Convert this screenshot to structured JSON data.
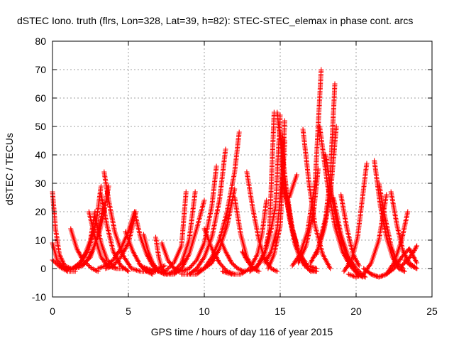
{
  "chart_data": {
    "type": "scatter",
    "title": "dSTEC Iono. truth (flrs, Lon=328, Lat=39, h=82): STEC-STEC_elemax in phase cont. arcs",
    "xlabel": "GPS time / hours of day 116 of year 2015",
    "ylabel": "dSTEC  / TECUs",
    "xlim": [
      0,
      25
    ],
    "ylim": [
      -10,
      80
    ],
    "xticks": [
      0,
      5,
      10,
      15,
      20,
      25
    ],
    "yticks": [
      -10,
      0,
      10,
      20,
      30,
      40,
      50,
      60,
      70,
      80
    ],
    "grid": true,
    "marker": "+",
    "color": "#ff0000",
    "series": [
      {
        "x": [
          0.0,
          0.2,
          0.45,
          0.8,
          1.2
        ],
        "y": [
          27,
          14,
          5,
          1,
          0
        ]
      },
      {
        "x": [
          0.0,
          0.3,
          0.8,
          1.4
        ],
        "y": [
          9,
          3,
          0,
          0
        ]
      },
      {
        "x": [
          0.0,
          0.5,
          1.0,
          1.5
        ],
        "y": [
          3,
          0.5,
          -1,
          -1
        ]
      },
      {
        "x": [
          0.5,
          1.0,
          1.5,
          2.0,
          2.5,
          2.8
        ],
        "y": [
          1,
          -0.5,
          0,
          3,
          10,
          20
        ]
      },
      {
        "x": [
          0.8,
          1.3,
          1.8,
          2.4,
          2.9,
          3.2
        ],
        "y": [
          0,
          0,
          2,
          7,
          17,
          29
        ]
      },
      {
        "x": [
          1.3,
          1.8,
          2.5,
          3.0,
          3.3
        ],
        "y": [
          0,
          0.5,
          4,
          12,
          21
        ]
      },
      {
        "x": [
          1.2,
          1.6,
          2.0,
          2.6,
          3.0
        ],
        "y": [
          14,
          7,
          3,
          0,
          -1
        ]
      },
      {
        "x": [
          2.0,
          2.3,
          2.7,
          3.1,
          3.4,
          3.7
        ],
        "y": [
          1,
          3,
          7,
          13,
          20,
          29
        ]
      },
      {
        "x": [
          2.4,
          2.8,
          3.2,
          3.6,
          4.2
        ],
        "y": [
          20,
          11,
          4,
          1,
          0
        ]
      },
      {
        "x": [
          3.4,
          3.7,
          4.1,
          4.6,
          5.2,
          5.8,
          6.3
        ],
        "y": [
          34,
          24,
          13,
          5,
          0,
          -1,
          -1
        ]
      },
      {
        "x": [
          3.2,
          3.6,
          4.0,
          4.5,
          5.0
        ],
        "y": [
          26,
          15,
          6,
          1,
          -1
        ]
      },
      {
        "x": [
          2.8,
          3.2,
          3.6,
          4.2,
          4.8
        ],
        "y": [
          18,
          9,
          3,
          0,
          0
        ]
      },
      {
        "x": [
          3.0,
          3.5,
          4.0,
          4.5,
          5.0,
          5.4
        ],
        "y": [
          0,
          1,
          3,
          7,
          13,
          20
        ]
      },
      {
        "x": [
          3.5,
          4.0,
          4.5,
          5.0,
          5.5
        ],
        "y": [
          0,
          1,
          4,
          9,
          20
        ]
      },
      {
        "x": [
          4.8,
          5.3,
          5.8,
          6.2,
          6.6
        ],
        "y": [
          13,
          6,
          1,
          -1,
          -2
        ]
      },
      {
        "x": [
          5.4,
          5.8,
          6.2,
          6.6,
          7.0,
          7.4
        ],
        "y": [
          20,
          11,
          5,
          1,
          -1,
          -2
        ]
      },
      {
        "x": [
          6.0,
          6.3,
          6.6,
          7.0
        ],
        "y": [
          12,
          6,
          2,
          -1
        ]
      },
      {
        "x": [
          6.8,
          7.0,
          7.2,
          7.5
        ],
        "y": [
          11,
          4,
          0,
          -2
        ]
      },
      {
        "x": [
          5.8,
          6.2,
          6.6,
          7.0,
          7.4
        ],
        "y": [
          1,
          0,
          -1,
          0,
          1
        ]
      },
      {
        "x": [
          6.2,
          6.8,
          7.4,
          8.0,
          8.5,
          8.8
        ],
        "y": [
          0,
          -1,
          -1,
          2,
          8,
          27
        ]
      },
      {
        "x": [
          7.0,
          7.5,
          8.0,
          8.5,
          9.0,
          9.4
        ],
        "y": [
          -1,
          -2,
          -1,
          2,
          10,
          27
        ]
      },
      {
        "x": [
          7.5,
          8.0,
          8.5,
          9.0,
          9.5,
          10.0
        ],
        "y": [
          -2,
          -2,
          0,
          5,
          14,
          24
        ]
      },
      {
        "x": [
          7.2,
          7.6,
          8.0,
          8.5
        ],
        "y": [
          9,
          3,
          0,
          -1
        ]
      },
      {
        "x": [
          8.0,
          8.5,
          9.0,
          9.5,
          10.0,
          10.5,
          10.8
        ],
        "y": [
          -1,
          -1,
          0,
          3,
          9,
          22,
          36
        ]
      },
      {
        "x": [
          8.5,
          9.0,
          9.5,
          10.0,
          10.5,
          11.0,
          11.4
        ],
        "y": [
          -2,
          -2,
          0,
          4,
          11,
          24,
          42
        ]
      },
      {
        "x": [
          9.0,
          9.5,
          10.0,
          10.5,
          11.0,
          11.5,
          12.0,
          12.3
        ],
        "y": [
          -2,
          -2,
          0,
          4,
          10,
          20,
          34,
          48
        ]
      },
      {
        "x": [
          9.5,
          10.0,
          10.5,
          11.0,
          11.5,
          12.0
        ],
        "y": [
          -1,
          0,
          2,
          7,
          15,
          28
        ]
      },
      {
        "x": [
          10.0,
          10.5,
          11.0,
          11.5,
          12.0
        ],
        "y": [
          14,
          7,
          2,
          -1,
          -2
        ]
      },
      {
        "x": [
          11.0,
          11.4,
          11.8,
          12.2,
          12.6
        ],
        "y": [
          11,
          6,
          2,
          0,
          -1
        ]
      },
      {
        "x": [
          11.2,
          11.8,
          12.4,
          13.0,
          13.5,
          13.8,
          14.1
        ],
        "y": [
          -1,
          -2,
          -2,
          0,
          5,
          12,
          24
        ]
      },
      {
        "x": [
          12.0,
          12.4,
          12.8,
          13.2
        ],
        "y": [
          25,
          12,
          4,
          0
        ]
      },
      {
        "x": [
          12.8,
          13.2,
          13.6,
          14.0,
          14.4,
          14.8
        ],
        "y": [
          34,
          21,
          10,
          3,
          0,
          -1
        ]
      },
      {
        "x": [
          12.5,
          12.8,
          13.2,
          13.6
        ],
        "y": [
          6,
          3,
          0,
          -1
        ]
      },
      {
        "x": [
          13.0,
          13.5,
          14.0,
          14.3,
          14.6
        ],
        "y": [
          -1,
          1,
          6,
          14,
          55
        ]
      },
      {
        "x": [
          13.4,
          13.9,
          14.3,
          14.7,
          15.0
        ],
        "y": [
          0,
          4,
          11,
          22,
          54
        ]
      },
      {
        "x": [
          14.0,
          14.4,
          14.8,
          15.1,
          15.3
        ],
        "y": [
          2,
          6,
          14,
          30,
          52
        ]
      },
      {
        "x": [
          14.2,
          14.6,
          15.0,
          15.3
        ],
        "y": [
          0,
          5,
          15,
          45
        ]
      },
      {
        "x": [
          14.8,
          15.2,
          15.6,
          16.0,
          16.5,
          17.0,
          17.4
        ],
        "y": [
          55,
          35,
          18,
          8,
          2,
          -1,
          -1
        ]
      },
      {
        "x": [
          15.0,
          15.4,
          15.8,
          16.2,
          16.8,
          17.4
        ],
        "y": [
          48,
          28,
          14,
          5,
          0,
          -1
        ]
      },
      {
        "x": [
          15.2,
          15.7,
          16.2,
          16.8,
          17.4
        ],
        "y": [
          30,
          16,
          6,
          1,
          0
        ]
      },
      {
        "x": [
          15.4,
          15.8,
          16.2,
          16.6
        ],
        "y": [
          26,
          14,
          6,
          1
        ]
      },
      {
        "x": [
          15.6,
          15.9,
          16.1
        ],
        "y": [
          25,
          30,
          33
        ]
      },
      {
        "x": [
          15.8,
          16.3,
          16.8,
          17.3,
          17.7
        ],
        "y": [
          1,
          5,
          13,
          30,
          70
        ]
      },
      {
        "x": [
          16.2,
          16.7,
          17.2,
          17.5
        ],
        "y": [
          2,
          8,
          20,
          35
        ]
      },
      {
        "x": [
          16.5,
          16.9,
          17.3,
          17.8,
          18.3
        ],
        "y": [
          49,
          30,
          15,
          5,
          0
        ]
      },
      {
        "x": [
          17.0,
          17.5,
          18.0,
          18.3,
          18.6
        ],
        "y": [
          2,
          7,
          18,
          32,
          65
        ]
      },
      {
        "x": [
          17.4,
          17.9,
          18.3,
          18.7
        ],
        "y": [
          5,
          14,
          26,
          50
        ]
      },
      {
        "x": [
          17.6,
          18.1,
          18.6,
          19.1,
          19.6,
          20.1,
          20.6
        ],
        "y": [
          50,
          30,
          15,
          6,
          1,
          -2,
          -3
        ]
      },
      {
        "x": [
          18.0,
          18.5,
          19.0,
          19.5,
          20.0,
          20.4
        ],
        "y": [
          40,
          22,
          10,
          3,
          -1,
          -3
        ]
      },
      {
        "x": [
          18.5,
          19.0,
          19.5,
          20.0,
          20.6
        ],
        "y": [
          25,
          12,
          4,
          0,
          -3
        ]
      },
      {
        "x": [
          19.0,
          19.4,
          19.8,
          20.2
        ],
        "y": [
          26,
          14,
          5,
          1
        ]
      },
      {
        "x": [
          19.2,
          19.7,
          20.1,
          20.4,
          20.7
        ],
        "y": [
          -1,
          3,
          11,
          24,
          37
        ]
      },
      {
        "x": [
          19.5,
          20.0,
          20.5,
          21.0,
          21.5,
          22.0
        ],
        "y": [
          -2,
          -3,
          -2,
          2,
          10,
          26
        ]
      },
      {
        "x": [
          20.5,
          21.0,
          21.5,
          22.0,
          22.5,
          23.0,
          23.4
        ],
        "y": [
          0,
          -2,
          -3,
          -2,
          2,
          10,
          20
        ]
      },
      {
        "x": [
          21.0,
          21.5,
          22.0,
          22.5,
          23.0,
          23.5,
          24.0
        ],
        "y": [
          -2,
          -3,
          -2,
          0,
          4,
          7,
          2
        ]
      },
      {
        "x": [
          21.2,
          21.6,
          22.0,
          22.4,
          22.8,
          23.2
        ],
        "y": [
          38,
          22,
          11,
          4,
          0,
          -1
        ]
      },
      {
        "x": [
          21.5,
          21.9,
          22.3,
          22.7,
          23.1
        ],
        "y": [
          30,
          18,
          8,
          2,
          0
        ]
      },
      {
        "x": [
          22.3,
          22.7,
          23.1,
          23.5,
          24.0
        ],
        "y": [
          27,
          15,
          6,
          2,
          0
        ]
      },
      {
        "x": [
          23.0,
          23.4,
          23.8,
          24.0
        ],
        "y": [
          1,
          3,
          6,
          8
        ]
      },
      {
        "x": [
          23.2,
          23.6,
          24.0
        ],
        "y": [
          3,
          1,
          0
        ]
      }
    ]
  }
}
